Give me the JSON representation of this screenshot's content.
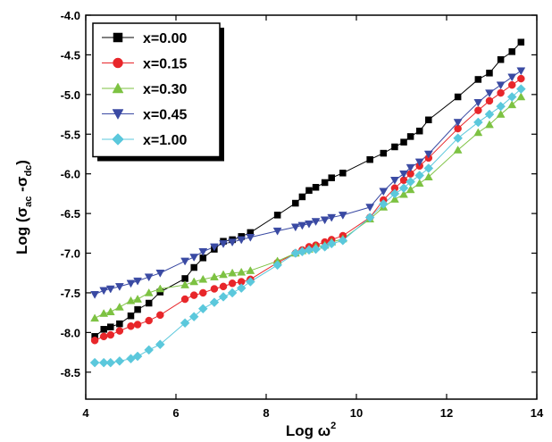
{
  "chart_data": {
    "type": "line",
    "xlabel": [
      "Log ω",
      "2"
    ],
    "ylabel": [
      "Log (σ",
      "ac",
      " -σ",
      "dc",
      ")"
    ],
    "xlim": [
      4,
      14
    ],
    "xticks": [
      4,
      6,
      8,
      10,
      12,
      14
    ],
    "ylim": [
      -8.84,
      -4.0
    ],
    "yticks": [
      {
        "value": -4,
        "label": "-4.0"
      },
      -4.5,
      {
        "value": -5,
        "label": "-5.0"
      },
      -5.5,
      {
        "value": -6,
        "label": "-6.0"
      },
      -6.5,
      {
        "value": -7,
        "label": "-7.0"
      },
      -7.5,
      {
        "value": -8,
        "label": "-8.0"
      },
      -8.5
    ],
    "legend": "top-left",
    "x": [
      4.2,
      4.4,
      4.55,
      4.75,
      5.0,
      5.15,
      5.4,
      5.65,
      6.2,
      6.4,
      6.6,
      6.85,
      7.05,
      7.25,
      7.45,
      7.65,
      8.25,
      8.65,
      8.8,
      8.95,
      9.1,
      9.3,
      9.45,
      9.7,
      10.3,
      10.6,
      10.85,
      11.05,
      11.2,
      11.4,
      11.6,
      12.25,
      12.7,
      12.95,
      13.2,
      13.45,
      13.65
    ],
    "series": [
      {
        "name": "x=0.00",
        "color": "#000000",
        "marker": "square",
        "values": [
          -8.05,
          -7.96,
          -7.93,
          -7.89,
          -7.79,
          -7.71,
          -7.63,
          -7.49,
          -7.32,
          -7.18,
          -7.06,
          -6.95,
          -6.85,
          -6.83,
          -6.79,
          -6.74,
          -6.52,
          -6.37,
          -6.29,
          -6.21,
          -6.17,
          -6.11,
          -6.05,
          -5.99,
          -5.82,
          -5.74,
          -5.66,
          -5.6,
          -5.53,
          -5.46,
          -5.32,
          -5.03,
          -4.81,
          -4.73,
          -4.56,
          -4.46,
          -4.34
        ]
      },
      {
        "name": "x=0.15",
        "color": "#e8262a",
        "marker": "circle",
        "values": [
          -8.1,
          -8.05,
          -8.03,
          -7.98,
          -7.92,
          -7.9,
          -7.85,
          -7.78,
          -7.58,
          -7.53,
          -7.5,
          -7.45,
          -7.42,
          -7.38,
          -7.36,
          -7.33,
          -7.12,
          -7.0,
          -6.96,
          -6.92,
          -6.9,
          -6.86,
          -6.83,
          -6.78,
          -6.55,
          -6.33,
          -6.18,
          -6.08,
          -6.0,
          -5.9,
          -5.8,
          -5.43,
          -5.2,
          -5.08,
          -4.98,
          -4.88,
          -4.8
        ]
      },
      {
        "name": "x=0.30",
        "color": "#7dc242",
        "marker": "triangle-up",
        "values": [
          -7.82,
          -7.76,
          -7.74,
          -7.68,
          -7.6,
          -7.58,
          -7.5,
          -7.45,
          -7.4,
          -7.36,
          -7.33,
          -7.3,
          -7.27,
          -7.25,
          -7.24,
          -7.22,
          -7.1,
          -7.0,
          -6.97,
          -6.95,
          -6.92,
          -6.9,
          -6.86,
          -6.82,
          -6.57,
          -6.42,
          -6.32,
          -6.26,
          -6.2,
          -6.12,
          -6.04,
          -5.7,
          -5.48,
          -5.38,
          -5.25,
          -5.13,
          -5.03
        ]
      },
      {
        "name": "x=0.45",
        "color": "#3a4aa3",
        "marker": "triangle-down",
        "values": [
          -7.52,
          -7.47,
          -7.45,
          -7.42,
          -7.38,
          -7.35,
          -7.3,
          -7.25,
          -7.1,
          -7.05,
          -6.98,
          -6.92,
          -6.88,
          -6.86,
          -6.83,
          -6.8,
          -6.72,
          -6.67,
          -6.65,
          -6.63,
          -6.6,
          -6.58,
          -6.55,
          -6.52,
          -6.42,
          -6.22,
          -6.08,
          -6.0,
          -5.92,
          -5.85,
          -5.75,
          -5.35,
          -5.1,
          -4.98,
          -4.88,
          -4.78,
          -4.7
        ]
      },
      {
        "name": "x=1.00",
        "color": "#5bc8dc",
        "marker": "diamond",
        "values": [
          -8.38,
          -8.38,
          -8.38,
          -8.36,
          -8.33,
          -8.3,
          -8.22,
          -8.15,
          -7.88,
          -7.8,
          -7.7,
          -7.62,
          -7.55,
          -7.5,
          -7.44,
          -7.36,
          -7.15,
          -7.0,
          -6.98,
          -6.96,
          -6.95,
          -6.92,
          -6.88,
          -6.84,
          -6.55,
          -6.38,
          -6.25,
          -6.18,
          -6.1,
          -6.02,
          -5.93,
          -5.55,
          -5.35,
          -5.25,
          -5.15,
          -5.03,
          -4.93
        ]
      }
    ]
  }
}
